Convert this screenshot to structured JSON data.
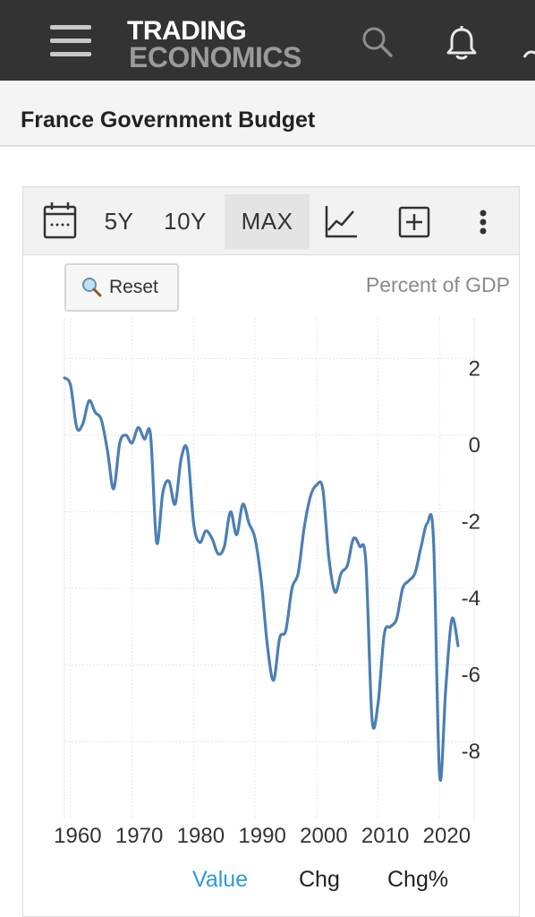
{
  "header": {
    "logo_line1": "TRADING",
    "logo_line2": "ECONOMICS",
    "icons": [
      "menu-icon",
      "search-icon",
      "bell-icon",
      "user-icon"
    ]
  },
  "page": {
    "title": "France Government Budget"
  },
  "toolbar": {
    "items": [
      "5Y",
      "10Y",
      "MAX"
    ],
    "selected": "MAX",
    "icons": [
      "calendar-icon",
      "line-chart-icon",
      "add-box-icon",
      "more-vertical-icon"
    ]
  },
  "chart": {
    "reset_label": "Reset",
    "unit_label": "Percent of GDP"
  },
  "tabs": {
    "items": [
      "Value",
      "Chg",
      "Chg%"
    ],
    "active": "Value"
  },
  "colors": {
    "accent": "#2e9ad6",
    "line": "#4a7fb5",
    "header_bg": "#333333"
  },
  "chart_data": {
    "type": "line",
    "title": "",
    "xlabel": "",
    "ylabel": "Percent of GDP",
    "ylim": [
      -9,
      3
    ],
    "xlim": [
      1959,
      2023
    ],
    "x_ticks": [
      "1960",
      "1970",
      "1980",
      "1990",
      "2000",
      "2010",
      "2020"
    ],
    "y_ticks": [
      "2",
      "0",
      "-2",
      "-4",
      "-6",
      "-8"
    ],
    "grid": true,
    "series": [
      {
        "name": "",
        "x": [
          1959,
          1960,
          1961,
          1962,
          1963,
          1964,
          1965,
          1966,
          1967,
          1968,
          1969,
          1970,
          1971,
          1972,
          1973,
          1974,
          1975,
          1976,
          1977,
          1978,
          1979,
          1980,
          1981,
          1982,
          1983,
          1984,
          1985,
          1986,
          1987,
          1988,
          1989,
          1990,
          1991,
          1992,
          1993,
          1994,
          1995,
          1996,
          1997,
          1998,
          1999,
          2000,
          2001,
          2002,
          2003,
          2004,
          2005,
          2006,
          2007,
          2008,
          2009,
          2010,
          2011,
          2012,
          2013,
          2014,
          2015,
          2016,
          2017,
          2018,
          2019,
          2020,
          2021,
          2022,
          2023
        ],
        "y": [
          1.5,
          1.3,
          0.2,
          0.3,
          0.9,
          0.6,
          0.4,
          -0.4,
          -1.4,
          -0.2,
          0.0,
          -0.2,
          0.2,
          -0.1,
          0.0,
          -2.8,
          -1.5,
          -1.2,
          -1.8,
          -0.6,
          -0.4,
          -2.3,
          -2.8,
          -2.5,
          -2.7,
          -3.1,
          -2.9,
          -2.0,
          -2.6,
          -1.8,
          -2.3,
          -2.7,
          -3.8,
          -5.5,
          -6.4,
          -5.3,
          -5.1,
          -4.0,
          -3.6,
          -2.4,
          -1.6,
          -1.3,
          -1.4,
          -3.2,
          -4.1,
          -3.6,
          -3.4,
          -2.7,
          -2.9,
          -3.3,
          -7.4,
          -7.0,
          -5.2,
          -5.0,
          -4.8,
          -4.0,
          -3.8,
          -3.6,
          -2.9,
          -2.3,
          -2.7,
          -8.9,
          -6.6,
          -4.8,
          -5.5
        ]
      }
    ]
  }
}
